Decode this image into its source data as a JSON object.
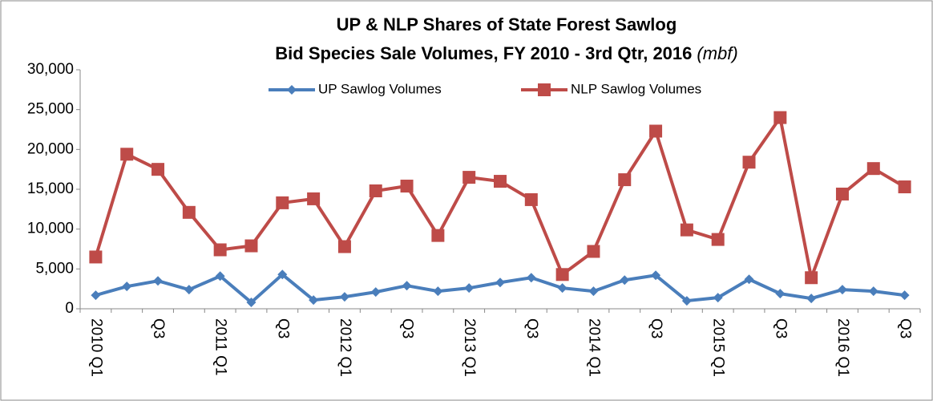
{
  "chart_data": {
    "type": "line",
    "title": [
      "UP & NLP Shares of State Forest Sawlog",
      "Bid Species  Sale Volumes, FY 2010 - 3rd Qtr, 2016"
    ],
    "title_unit": "(mbf)",
    "categories": [
      "2010 Q1",
      null,
      "Q3",
      null,
      "2011 Q1",
      null,
      "Q3",
      null,
      "2012 Q1",
      null,
      "Q3",
      null,
      "2013 Q1",
      null,
      "Q3",
      null,
      "2014 Q1",
      null,
      "Q3",
      null,
      "2015 Q1",
      null,
      "Q3",
      null,
      "2016 Q1",
      null,
      "Q3"
    ],
    "series": [
      {
        "name": "UP Sawlog Volumes",
        "color": "#4a7ebb",
        "marker": "diamond",
        "values": [
          1700,
          2800,
          3500,
          2400,
          4100,
          800,
          4300,
          1100,
          1500,
          2100,
          2900,
          2200,
          2600,
          3300,
          3900,
          2600,
          2200,
          3600,
          4200,
          1000,
          1400,
          3700,
          1900,
          1300,
          2400,
          2200,
          1700
        ]
      },
      {
        "name": "NLP Sawlog Volumes",
        "color": "#be4b48",
        "marker": "square",
        "values": [
          6500,
          19400,
          17500,
          12100,
          7400,
          7900,
          13300,
          13800,
          7800,
          14800,
          15400,
          9200,
          16500,
          16000,
          13700,
          4300,
          7200,
          16200,
          22300,
          9900,
          8700,
          18400,
          24000,
          3900,
          14400,
          17600,
          15300
        ]
      }
    ],
    "ylim": [
      0,
      30000
    ],
    "yticks": [
      0,
      {
        "value": 5000,
        "label": "5,000"
      },
      {
        "value": 10000,
        "label": "10,000"
      },
      {
        "value": 15000,
        "label": "15,000"
      },
      {
        "value": 20000,
        "label": "20,000"
      },
      {
        "value": 25000,
        "label": "25,000"
      },
      {
        "value": 30000,
        "label": "30,000"
      }
    ],
    "grid": false,
    "legend": "top"
  }
}
